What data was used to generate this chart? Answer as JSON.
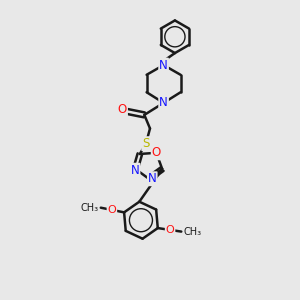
{
  "background_color": "#e8e8e8",
  "bond_color": "#1a1a1a",
  "bond_width": 1.8,
  "atom_colors": {
    "N": "#1414ff",
    "O": "#ff1414",
    "S": "#b8b800",
    "C": "#1a1a1a"
  },
  "font_size_atom": 8.5,
  "figure_size": [
    3.0,
    3.0
  ],
  "dpi": 100,
  "xlim": [
    0,
    10
  ],
  "ylim": [
    0,
    13
  ]
}
